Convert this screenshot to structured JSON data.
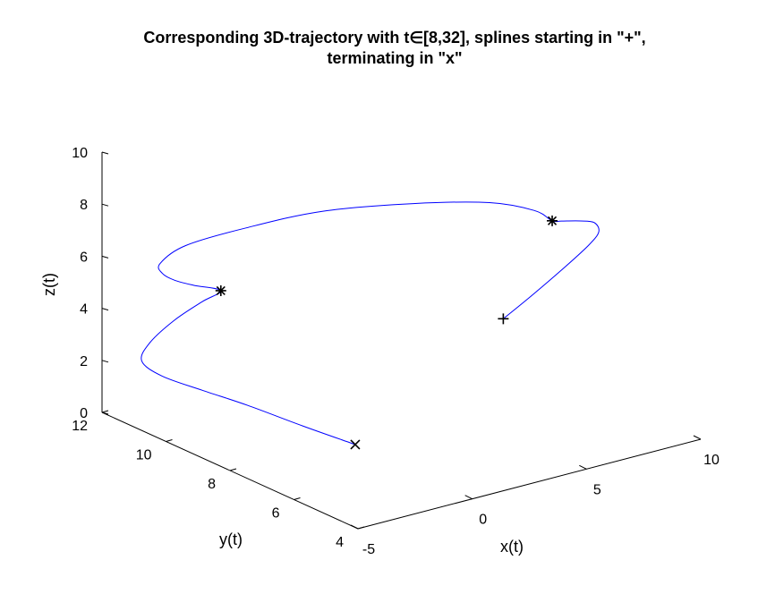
{
  "chart_data": {
    "type": "line",
    "projection": "3d",
    "title_lines": [
      "Corresponding 3D-trajectory with t∈[8,32], splines starting in \"+\",",
      "terminating in \"x\""
    ],
    "xlabel": "x(t)",
    "ylabel": "y(t)",
    "zlabel": "z(t)",
    "xlim": [
      -5,
      10
    ],
    "ylim": [
      4,
      12
    ],
    "zlim": [
      0,
      10
    ],
    "xticks": [
      -5,
      0,
      5,
      10
    ],
    "yticks": [
      4,
      6,
      8,
      10,
      12
    ],
    "zticks": [
      0,
      2,
      4,
      6,
      8,
      10
    ],
    "grid": false,
    "line_color": "#0000ff",
    "start_marker": "+",
    "end_marker": "x",
    "knot_marker": "*",
    "start_point": {
      "x": 3.6,
      "y": 5.6,
      "z": 5.2
    },
    "knots": [
      {
        "x": 4.9,
        "y": 5.0,
        "z": 9.0
      },
      {
        "x": -5.4,
        "y": 8.0,
        "z": 7.0
      }
    ],
    "end_point": {
      "x": -1.2,
      "y": 6.8,
      "z": 0.8
    },
    "series": [
      {
        "x": [
          3.6,
          4.6,
          5.7,
          6.5,
          6.8,
          6.6,
          6.0,
          5.3,
          4.9,
          4.4,
          3.0,
          0.5,
          -2.5,
          -5.0,
          -6.8,
          -7.5,
          -7.4,
          -7.0,
          -6.3,
          -5.4,
          -5.8,
          -6.6,
          -7.4,
          -7.6,
          -7.0,
          -5.8,
          -4.5,
          -2.8,
          -1.2
        ],
        "y": [
          5.6,
          5.4,
          5.2,
          5.0,
          4.9,
          4.9,
          4.9,
          5.0,
          5.0,
          5.2,
          5.6,
          6.2,
          6.9,
          7.5,
          8.1,
          8.4,
          8.4,
          8.3,
          8.2,
          8.0,
          8.3,
          8.6,
          8.8,
          8.9,
          8.7,
          8.3,
          7.8,
          7.3,
          6.8
        ],
        "z": [
          5.2,
          6.0,
          6.9,
          7.7,
          8.2,
          8.6,
          8.8,
          8.9,
          9.0,
          9.4,
          9.8,
          10.0,
          10.0,
          9.6,
          9.0,
          8.3,
          7.9,
          7.6,
          7.3,
          7.0,
          6.5,
          5.8,
          5.0,
          4.3,
          3.7,
          3.1,
          2.5,
          1.6,
          0.8
        ]
      }
    ]
  }
}
